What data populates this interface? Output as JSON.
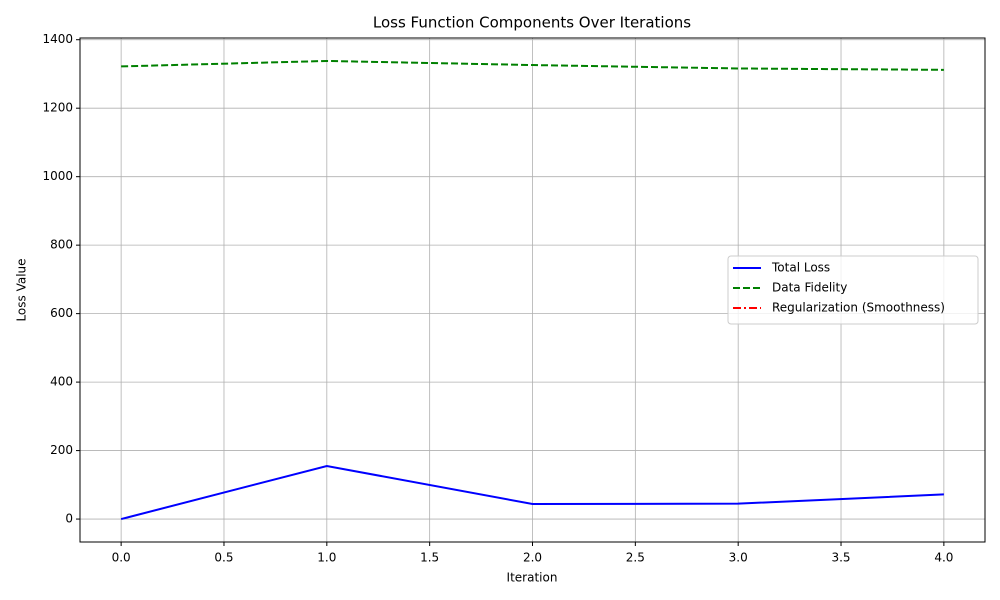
{
  "chart_data": {
    "type": "line",
    "title": "Loss Function Components Over Iterations",
    "xlabel": "Iteration",
    "ylabel": "Loss Value",
    "x": [
      0,
      1,
      2,
      3,
      4
    ],
    "series": [
      {
        "name": "Total Loss",
        "color": "#0000ff",
        "style": "solid",
        "values": [
          0,
          155,
          44,
          45,
          72
        ]
      },
      {
        "name": "Data Fidelity",
        "color": "#008000",
        "style": "dashed",
        "values": [
          1322,
          1338,
          1326,
          1316,
          1312
        ]
      },
      {
        "name": "Regularization (Smoothness)",
        "color": "#ff0000",
        "style": "dashdot",
        "values": [
          null,
          null,
          null,
          null,
          null
        ]
      }
    ],
    "xlim": [
      -0.2,
      4.2
    ],
    "xticks": [
      {
        "value": 0,
        "label": "0.0"
      },
      {
        "value": 0.5,
        "label": "0.5"
      },
      {
        "value": 1,
        "label": "1.0"
      },
      {
        "value": 1.5,
        "label": "1.5"
      },
      {
        "value": 2,
        "label": "2.0"
      },
      {
        "value": 2.5,
        "label": "2.5"
      },
      {
        "value": 3,
        "label": "3.0"
      },
      {
        "value": 3.5,
        "label": "3.5"
      },
      {
        "value": 4,
        "label": "4.0"
      }
    ],
    "ylim": [
      -67,
      1405
    ],
    "yticks": [
      0,
      200,
      400,
      600,
      800,
      1000,
      1200,
      1400
    ],
    "grid": true,
    "legend": "center right"
  }
}
